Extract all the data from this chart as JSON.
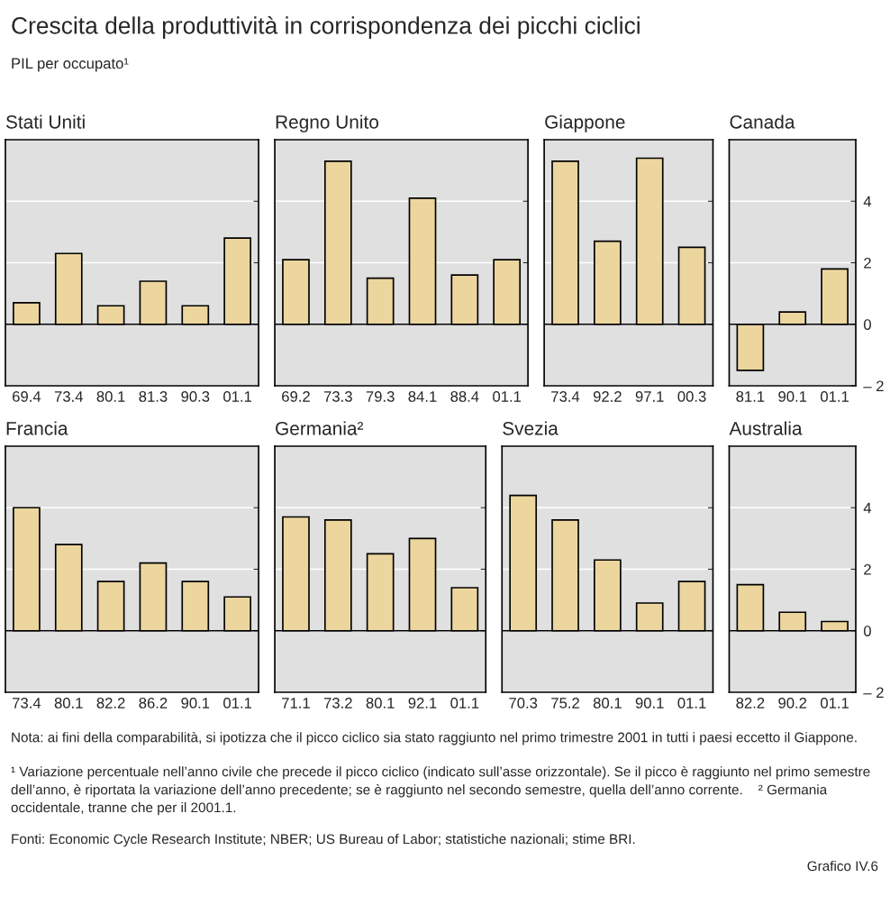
{
  "chart_data": [
    {
      "type": "bar",
      "title": "Stati Uniti",
      "categories": [
        "69.4",
        "73.4",
        "80.1",
        "81.3",
        "90.3",
        "01.1"
      ],
      "values": [
        0.7,
        2.3,
        0.6,
        1.4,
        0.6,
        2.8
      ],
      "color": "#ecd69e",
      "ylim": [
        -2,
        6
      ],
      "yticks": [
        0,
        2,
        4
      ],
      "grid": "y",
      "tick_labels": "x"
    },
    {
      "type": "bar",
      "title": "Regno Unito",
      "categories": [
        "69.2",
        "73.3",
        "79.3",
        "84.1",
        "88.4",
        "01.1"
      ],
      "values": [
        2.1,
        5.3,
        1.5,
        4.1,
        1.6,
        2.1
      ],
      "color": "#ecd69e",
      "ylim": [
        -2,
        6
      ],
      "yticks": [
        0,
        2,
        4
      ],
      "grid": "y",
      "tick_labels": "x"
    },
    {
      "type": "bar",
      "title": "Giappone",
      "categories": [
        "73.4",
        "92.2",
        "97.1",
        "00.3"
      ],
      "values": [
        5.3,
        2.7,
        5.4,
        2.5
      ],
      "color": "#ecd69e",
      "ylim": [
        -2,
        6
      ],
      "yticks": [
        0,
        2,
        4
      ],
      "grid": "y",
      "tick_labels": "x"
    },
    {
      "type": "bar",
      "title": "Canada",
      "categories": [
        "81.1",
        "90.1",
        "01.1"
      ],
      "values": [
        -1.5,
        0.4,
        1.8
      ],
      "color": "#ecd69e",
      "ylim": [
        -2,
        6
      ],
      "yticks": [
        {
          "value": -2,
          "label": "– 2"
        },
        0,
        2,
        4
      ],
      "grid": "y"
    },
    {
      "type": "bar",
      "title": "Francia",
      "categories": [
        "73.4",
        "80.1",
        "82.2",
        "86.2",
        "90.1",
        "01.1"
      ],
      "values": [
        4.0,
        2.8,
        1.6,
        2.2,
        1.6,
        1.1
      ],
      "color": "#ecd69e",
      "ylim": [
        -2,
        6
      ],
      "yticks": [
        0,
        2,
        4
      ],
      "grid": "y",
      "tick_labels": "x"
    },
    {
      "type": "bar",
      "title": "Germania²",
      "categories": [
        "71.1",
        "73.2",
        "80.1",
        "92.1",
        "01.1"
      ],
      "values": [
        3.7,
        3.6,
        2.5,
        3.0,
        1.4
      ],
      "color": "#ecd69e",
      "ylim": [
        -2,
        6
      ],
      "yticks": [
        0,
        2,
        4
      ],
      "grid": "y",
      "tick_labels": "x"
    },
    {
      "type": "bar",
      "title": "Svezia",
      "categories": [
        "70.3",
        "75.2",
        "80.1",
        "90.1",
        "01.1"
      ],
      "values": [
        4.4,
        3.6,
        2.3,
        0.9,
        1.6
      ],
      "color": "#ecd69e",
      "ylim": [
        -2,
        6
      ],
      "yticks": [
        0,
        2,
        4
      ],
      "grid": "y",
      "tick_labels": "x"
    },
    {
      "type": "bar",
      "title": "Australia",
      "categories": [
        "82.2",
        "90.2",
        "01.1"
      ],
      "values": [
        1.5,
        0.6,
        0.3
      ],
      "color": "#ecd69e",
      "ylim": [
        -2,
        6
      ],
      "yticks": [
        {
          "value": -2,
          "label": "– 2"
        },
        0,
        2,
        4
      ],
      "grid": "y"
    },
    {
      "type": "other",
      "title": "Crescita della produttività in corrispondenza dei picchi ciclici",
      "subtitle": "PIL per occupato¹",
      "annotations": [
        "Nota: ai fini della comparabilità, si ipotizza che il picco ciclico sia stato raggiunto nel primo trimestre 2001 in tutti i paesi eccetto il Giappone.",
        "¹ Variazione percentuale nell’anno civile che precede il picco ciclico (indicato sull’asse orizzontale). Se il picco è raggiunto nel primo semestre dell’anno, è riportata la variazione dell’anno precedente; se è raggiunto nel secondo semestre, quella dell’anno corrente.    ² Germania occidentale, tranne che per il 2001.1.",
        "Fonti: Economic Cycle Research Institute; NBER; US Bureau of Labor; statistiche nazionali; stime BRI.",
        "Grafico IV.6"
      ]
    }
  ]
}
